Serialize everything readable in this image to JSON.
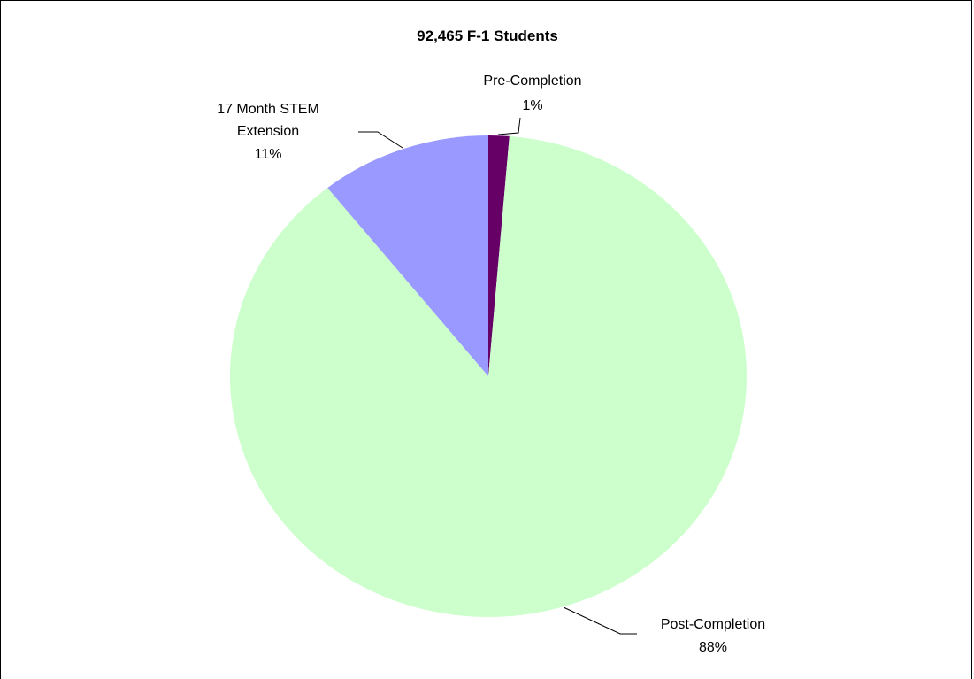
{
  "chart_data": {
    "type": "pie",
    "title": "92,465 F-1 Students",
    "slices": [
      {
        "name": "Pre-Completion",
        "value": 1.3,
        "label_lines": [
          "Pre-Completion",
          "1%"
        ],
        "color": "#660066"
      },
      {
        "name": "Post-Completion",
        "value": 88,
        "label_lines": [
          "Post-Completion",
          "88%"
        ],
        "color": "#CCFFCC"
      },
      {
        "name": "17 Month STEM Extension",
        "value": 10.7,
        "label_lines": [
          "17 Month STEM",
          "Extension",
          "11%"
        ],
        "color": "#9999FF"
      }
    ],
    "start_angle": "12 o'clock",
    "direction": "clockwise",
    "legend": "none"
  }
}
